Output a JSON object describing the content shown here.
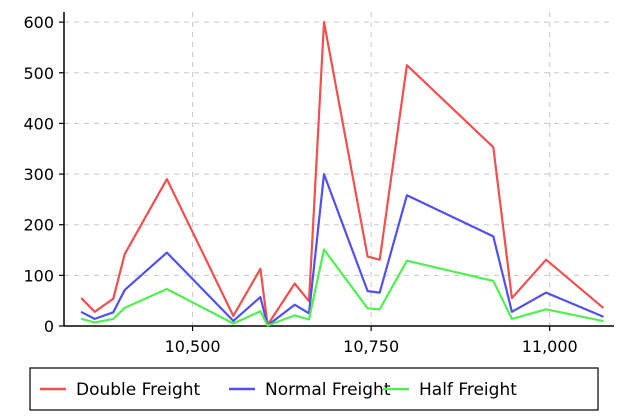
{
  "chart_data": {
    "type": "line",
    "title": "",
    "xlabel": "",
    "ylabel": "",
    "xlim": [
      10320,
      11090
    ],
    "ylim": [
      0,
      620
    ],
    "x_ticks": [
      10500,
      10750,
      11000
    ],
    "x_tick_labels": [
      "10,500",
      "10,750",
      "11,000"
    ],
    "y_ticks": [
      0,
      100,
      200,
      300,
      400,
      500,
      600
    ],
    "y_tick_labels": [
      "0",
      "100",
      "200",
      "300",
      "400",
      "500",
      "600"
    ],
    "grid": true,
    "legend_position": "bottom",
    "x": [
      10345,
      10363,
      10389,
      10405,
      10464,
      10557,
      10595,
      10605,
      10643,
      10663,
      10684,
      10745,
      10762,
      10800,
      10921,
      10947,
      10995,
      11074
    ],
    "series": [
      {
        "name": "Double Freight",
        "color": "#f05050",
        "values": [
          54,
          28,
          54,
          142,
          290,
          20,
          113,
          2,
          84,
          49,
          600,
          137,
          131,
          515,
          353,
          55,
          131,
          37
        ]
      },
      {
        "name": "Normal Freight",
        "color": "#5050f0",
        "values": [
          27,
          14,
          27,
          71,
          145,
          10,
          57,
          1,
          42,
          25,
          300,
          69,
          66,
          258,
          177,
          28,
          66,
          19
        ]
      },
      {
        "name": "Half Freight",
        "color": "#50f050",
        "values": [
          14,
          7,
          14,
          36,
          73,
          5,
          29,
          1,
          21,
          13,
          151,
          35,
          33,
          129,
          89,
          14,
          33,
          10
        ]
      }
    ]
  }
}
